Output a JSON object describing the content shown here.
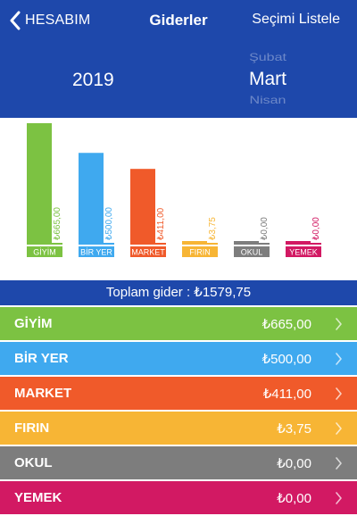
{
  "nav": {
    "back_label": "HESABIM",
    "title": "Giderler",
    "right_label": "Seçimi Listele"
  },
  "picker": {
    "year": "2019",
    "prev_month": "Şubat",
    "current_month": "Mart",
    "next_month": "Nisan"
  },
  "chart_data": {
    "type": "bar",
    "categories": [
      "GİYİM",
      "BİR YER",
      "MARKET",
      "FIRIN",
      "OKUL",
      "YEMEK"
    ],
    "values": [
      665.0,
      500.0,
      411.0,
      3.75,
      0.0,
      0.0
    ],
    "value_labels": [
      "₺665,00",
      "₺500,00",
      "₺411,00",
      "₺3,75",
      "₺0,00",
      "₺0,00"
    ],
    "colors": [
      "#7cc242",
      "#3fa9ef",
      "#f05a2a",
      "#f7b535",
      "#7d7d7d",
      "#d21963"
    ],
    "ylim": [
      0,
      665
    ]
  },
  "total": {
    "text": "Toplam gider : ₺1579,75"
  },
  "items": [
    {
      "label": "GİYİM",
      "value": "₺665,00",
      "color": "#7cc242"
    },
    {
      "label": "BİR YER",
      "value": "₺500,00",
      "color": "#3fa9ef"
    },
    {
      "label": "MARKET",
      "value": "₺411,00",
      "color": "#f05a2a"
    },
    {
      "label": "FIRIN",
      "value": "₺3,75",
      "color": "#f7b535"
    },
    {
      "label": "OKUL",
      "value": "₺0,00",
      "color": "#7d7d7d"
    },
    {
      "label": "YEMEK",
      "value": "₺0,00",
      "color": "#d21963"
    }
  ]
}
